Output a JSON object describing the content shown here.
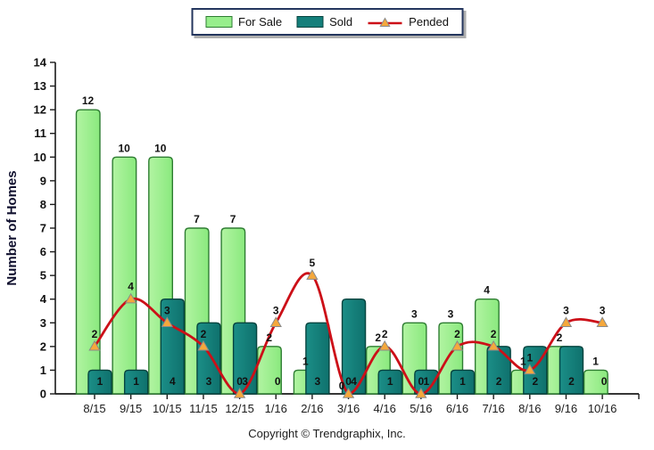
{
  "chart_data": {
    "type": "combo",
    "title": "",
    "categories": [
      "8/15",
      "9/15",
      "10/15",
      "11/15",
      "12/15",
      "1/16",
      "2/16",
      "3/16",
      "4/16",
      "5/16",
      "6/16",
      "7/16",
      "8/16",
      "9/16",
      "10/16"
    ],
    "series": [
      {
        "name": "For Sale",
        "type": "bar",
        "color": "#97ee8c",
        "border": "#2e7d32",
        "values": [
          12,
          10,
          10,
          7,
          7,
          2,
          1,
          0,
          2,
          3,
          3,
          4,
          1,
          2,
          1
        ]
      },
      {
        "name": "Sold",
        "type": "bar",
        "color": "#147f7b",
        "border": "#06443f",
        "values": [
          1,
          1,
          4,
          3,
          3,
          0,
          3,
          4,
          1,
          1,
          1,
          2,
          2,
          2,
          0
        ]
      },
      {
        "name": "Pended",
        "type": "line",
        "color": "#cc1018",
        "marker": "triangle",
        "marker_color": "#f5a83c",
        "marker_border": "#8a8a8a",
        "values": [
          2,
          4,
          3,
          2,
          0,
          3,
          5,
          0,
          2,
          0,
          2,
          2,
          1,
          3,
          3
        ]
      }
    ],
    "xlabel": "",
    "ylabel": "Number of Homes",
    "ylim": [
      0,
      14
    ],
    "ytick_step": 1,
    "grid": false,
    "legend_position": "top-center"
  },
  "footer": {
    "copyright": "Copyright © Trendgraphix, Inc."
  }
}
